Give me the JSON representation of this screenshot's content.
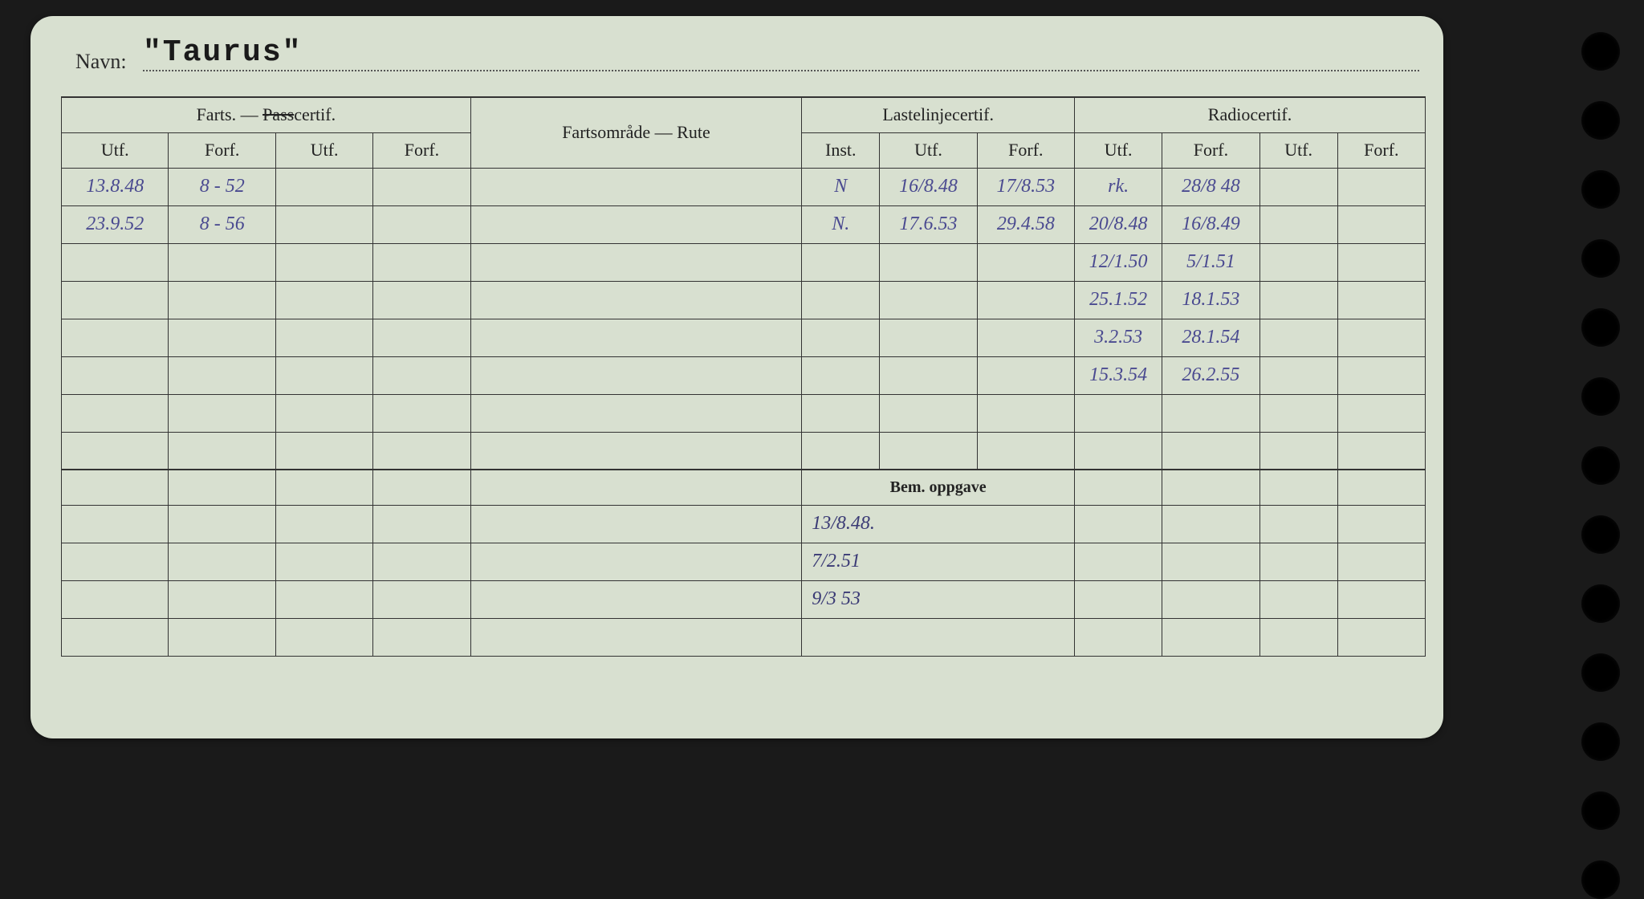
{
  "labels": {
    "navn": "Navn:",
    "farts_pass": "Farts. — Passcertif.",
    "fartsomrade": "Fartsområde — Rute",
    "lastelinje": "Lastelinjecertif.",
    "radio": "Radiocertif.",
    "utf": "Utf.",
    "forf": "Forf.",
    "inst": "Inst.",
    "bem_oppgave": "Bem. oppgave"
  },
  "name_value": "\"Taurus\"",
  "columns": {
    "farts_utf1_w": 110,
    "farts_forf1_w": 110,
    "farts_utf2_w": 100,
    "farts_forf2_w": 100,
    "fartsomrade_w": 340,
    "laste_inst_w": 80,
    "laste_utf_w": 100,
    "laste_forf_w": 100,
    "radio_utf1_w": 90,
    "radio_forf1_w": 100,
    "radio_utf2_w": 80,
    "radio_forf2_w": 90
  },
  "rows": [
    {
      "farts_utf1": "13.8.48",
      "farts_forf1": "8 - 52",
      "farts_utf2": "",
      "farts_forf2": "",
      "fartsomrade": "",
      "laste_inst": "N",
      "laste_utf": "16/8.48",
      "laste_forf": "17/8.53",
      "radio_utf1": "rk.",
      "radio_forf1": "28/8 48",
      "radio_utf2": "",
      "radio_forf2": ""
    },
    {
      "farts_utf1": "23.9.52",
      "farts_forf1": "8 - 56",
      "farts_utf2": "",
      "farts_forf2": "",
      "fartsomrade": "",
      "laste_inst": "N.",
      "laste_utf": "17.6.53",
      "laste_forf": "29.4.58",
      "radio_utf1": "20/8.48",
      "radio_forf1": "16/8.49",
      "radio_utf2": "",
      "radio_forf2": ""
    },
    {
      "farts_utf1": "",
      "farts_forf1": "",
      "farts_utf2": "",
      "farts_forf2": "",
      "fartsomrade": "",
      "laste_inst": "",
      "laste_utf": "",
      "laste_forf": "",
      "radio_utf1": "12/1.50",
      "radio_forf1": "5/1.51",
      "radio_utf2": "",
      "radio_forf2": ""
    },
    {
      "farts_utf1": "",
      "farts_forf1": "",
      "farts_utf2": "",
      "farts_forf2": "",
      "fartsomrade": "",
      "laste_inst": "",
      "laste_utf": "",
      "laste_forf": "",
      "radio_utf1": "25.1.52",
      "radio_forf1": "18.1.53",
      "radio_utf2": "",
      "radio_forf2": ""
    },
    {
      "farts_utf1": "",
      "farts_forf1": "",
      "farts_utf2": "",
      "farts_forf2": "",
      "fartsomrade": "",
      "laste_inst": "",
      "laste_utf": "",
      "laste_forf": "",
      "radio_utf1": "3.2.53",
      "radio_forf1": "28.1.54",
      "radio_utf2": "",
      "radio_forf2": ""
    },
    {
      "farts_utf1": "",
      "farts_forf1": "",
      "farts_utf2": "",
      "farts_forf2": "",
      "fartsomrade": "",
      "laste_inst": "",
      "laste_utf": "",
      "laste_forf": "",
      "radio_utf1": "15.3.54",
      "radio_forf1": "26.2.55",
      "radio_utf2": "",
      "radio_forf2": ""
    },
    {
      "farts_utf1": "",
      "farts_forf1": "",
      "farts_utf2": "",
      "farts_forf2": "",
      "fartsomrade": "",
      "laste_inst": "",
      "laste_utf": "",
      "laste_forf": "",
      "radio_utf1": "",
      "radio_forf1": "",
      "radio_utf2": "",
      "radio_forf2": ""
    },
    {
      "farts_utf1": "",
      "farts_forf1": "",
      "farts_utf2": "",
      "farts_forf2": "",
      "fartsomrade": "",
      "laste_inst": "",
      "laste_utf": "",
      "laste_forf": "",
      "radio_utf1": "",
      "radio_forf1": "",
      "radio_utf2": "",
      "radio_forf2": ""
    }
  ],
  "bem_rows": [
    {
      "farts_utf1": "",
      "farts_forf1": "",
      "farts_utf2": "",
      "farts_forf2": "",
      "fartsomrade": "",
      "bem": "13/8.48.",
      "radio_utf1": "",
      "radio_forf1": "",
      "radio_utf2": "",
      "radio_forf2": ""
    },
    {
      "farts_utf1": "",
      "farts_forf1": "",
      "farts_utf2": "",
      "farts_forf2": "",
      "fartsomrade": "",
      "bem": "7/2.51",
      "radio_utf1": "",
      "radio_forf1": "",
      "radio_utf2": "",
      "radio_forf2": ""
    },
    {
      "farts_utf1": "",
      "farts_forf1": "",
      "farts_utf2": "",
      "farts_forf2": "",
      "fartsomrade": "",
      "bem": "9/3 53",
      "radio_utf1": "",
      "radio_forf1": "",
      "radio_utf2": "",
      "radio_forf2": ""
    },
    {
      "farts_utf1": "",
      "farts_forf1": "",
      "farts_utf2": "",
      "farts_forf2": "",
      "fartsomrade": "",
      "bem": "",
      "radio_utf1": "",
      "radio_forf1": "",
      "radio_utf2": "",
      "radio_forf2": ""
    }
  ],
  "colors": {
    "card_bg": "#d8e0d0",
    "body_bg": "#1a1a1a",
    "border": "#333333",
    "printed_text": "#222222",
    "handwriting": "#4a4a90",
    "hole": "#000000"
  },
  "hole_count": 13
}
